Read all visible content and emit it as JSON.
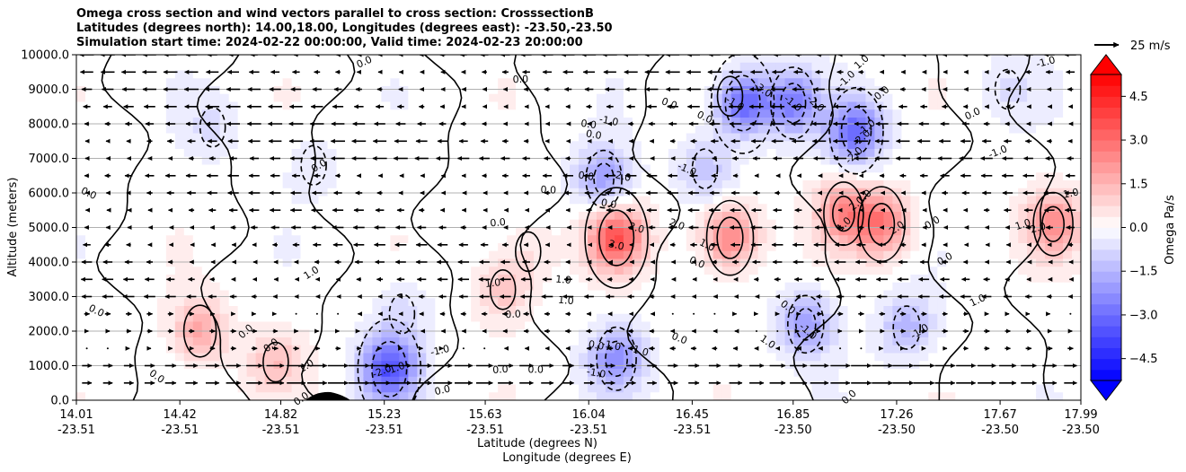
{
  "title_lines": [
    "Omega cross section and wind vectors parallel to cross section: CrosssectionB",
    "Latitudes (degrees north): 14.00,18.00, Longitudes (degrees east): -23.50,-23.50",
    "Simulation start time: 2024-02-22 00:00:00, Valid time: 2024-02-23 20:00:00"
  ],
  "chart_data": {
    "type": "heatmap",
    "overlays": [
      "contour",
      "quiver"
    ],
    "ylabel": "Altitude (meters)",
    "xlabel_lines": [
      "Latitude (degrees N)",
      "Longitude (degrees E)"
    ],
    "ylim": [
      0,
      10000
    ],
    "yticks": [
      "0.0",
      "1000.0",
      "2000.0",
      "3000.0",
      "4000.0",
      "5000.0",
      "6000.0",
      "7000.0",
      "8000.0",
      "9000.0",
      "10000.0"
    ],
    "xlim": [
      14.01,
      17.99
    ],
    "xticks": [
      {
        "lat": "14.01",
        "lon": "-23.51"
      },
      {
        "lat": "14.42",
        "lon": "-23.51"
      },
      {
        "lat": "14.82",
        "lon": "-23.51"
      },
      {
        "lat": "15.23",
        "lon": "-23.51"
      },
      {
        "lat": "15.63",
        "lon": "-23.51"
      },
      {
        "lat": "16.04",
        "lon": "-23.51"
      },
      {
        "lat": "16.45",
        "lon": "-23.51"
      },
      {
        "lat": "16.85",
        "lon": "-23.50"
      },
      {
        "lat": "17.26",
        "lon": "-23.50"
      },
      {
        "lat": "17.67",
        "lon": "-23.50"
      },
      {
        "lat": "17.99",
        "lon": "-23.50"
      }
    ],
    "grid": "horizontal",
    "colorbar": {
      "label": "Omega Pa/s",
      "range": [
        -5.25,
        5.25
      ],
      "ticks": [
        "4.5",
        "3.0",
        "1.5",
        "0.0",
        "−1.5",
        "−3.0",
        "−4.5"
      ],
      "tick_values": [
        4.5,
        3.0,
        1.5,
        0.0,
        -1.5,
        -3.0,
        -4.5
      ],
      "extend": "both",
      "colormap": "bwr"
    },
    "quiver_key": "25 m/s",
    "omega_cells": [
      {
        "lat": 16.15,
        "alt": 4700,
        "omega": 3.5
      },
      {
        "lat": 16.6,
        "alt": 4700,
        "omega": 2.6
      },
      {
        "lat": 17.2,
        "alt": 5100,
        "omega": 2.6
      },
      {
        "lat": 17.05,
        "alt": 5400,
        "omega": 2.2
      },
      {
        "lat": 17.88,
        "alt": 5100,
        "omega": 2.2
      },
      {
        "lat": 14.5,
        "alt": 2000,
        "omega": 1.8
      },
      {
        "lat": 14.8,
        "alt": 1100,
        "omega": 1.2
      },
      {
        "lat": 15.7,
        "alt": 3200,
        "omega": 1.3
      },
      {
        "lat": 15.8,
        "alt": 4300,
        "omega": 0.6
      },
      {
        "lat": 16.6,
        "alt": 8800,
        "omega": 0.4
      },
      {
        "lat": 16.65,
        "alt": 8600,
        "omega": -3.5
      },
      {
        "lat": 16.85,
        "alt": 8600,
        "omega": -2.5
      },
      {
        "lat": 17.1,
        "alt": 7800,
        "omega": -3.0
      },
      {
        "lat": 16.1,
        "alt": 6400,
        "omega": -2.0
      },
      {
        "lat": 16.5,
        "alt": 6700,
        "omega": -1.2
      },
      {
        "lat": 16.9,
        "alt": 2200,
        "omega": -2.0
      },
      {
        "lat": 17.3,
        "alt": 2100,
        "omega": -1.5
      },
      {
        "lat": 15.25,
        "alt": 900,
        "omega": -3.5
      },
      {
        "lat": 16.15,
        "alt": 1200,
        "omega": -2.2
      },
      {
        "lat": 14.55,
        "alt": 7900,
        "omega": -0.6
      },
      {
        "lat": 14.95,
        "alt": 6800,
        "omega": -0.5
      },
      {
        "lat": 17.7,
        "alt": 9000,
        "omega": -0.6
      },
      {
        "lat": 15.3,
        "alt": 2500,
        "omega": -0.8
      }
    ],
    "contour_labels": [
      {
        "text": "0.0",
        "lat": 14.06,
        "alt": 6000
      },
      {
        "text": "0.0",
        "lat": 14.09,
        "alt": 2600
      },
      {
        "text": "0.0",
        "lat": 14.33,
        "alt": 700
      },
      {
        "text": "0.0",
        "lat": 14.68,
        "alt": 2000
      },
      {
        "text": "0.0",
        "lat": 14.78,
        "alt": 1600
      },
      {
        "text": "0.0",
        "lat": 14.9,
        "alt": 50
      },
      {
        "text": "1.0",
        "lat": 14.92,
        "alt": 1000
      },
      {
        "text": "1.0",
        "lat": 14.94,
        "alt": 3700
      },
      {
        "text": "0.0",
        "lat": 14.97,
        "alt": 6800
      },
      {
        "text": "0.0",
        "lat": 15.15,
        "alt": 9800
      },
      {
        "text": "1.0",
        "lat": 15.28,
        "alt": 950
      },
      {
        "text": "-2.0",
        "lat": 15.22,
        "alt": 850
      },
      {
        "text": "-1.0",
        "lat": 15.45,
        "alt": 1450
      },
      {
        "text": "0.0",
        "lat": 15.46,
        "alt": 300
      },
      {
        "text": "1.0",
        "lat": 15.66,
        "alt": 3400
      },
      {
        "text": "0.0",
        "lat": 15.68,
        "alt": 5150
      },
      {
        "text": "0.0",
        "lat": 15.74,
        "alt": 2500
      },
      {
        "text": "0.0",
        "lat": 15.69,
        "alt": 900
      },
      {
        "text": "0.0",
        "lat": 15.77,
        "alt": 9300
      },
      {
        "text": "0.0",
        "lat": 15.88,
        "alt": 6100
      },
      {
        "text": "1.0",
        "lat": 15.94,
        "alt": 3500
      },
      {
        "text": "1.0",
        "lat": 15.95,
        "alt": 2900
      },
      {
        "text": "0.0",
        "lat": 15.83,
        "alt": 900
      },
      {
        "text": "0.0",
        "lat": 16.04,
        "alt": 8000
      },
      {
        "text": "0.0",
        "lat": 16.06,
        "alt": 7700
      },
      {
        "text": "0.0",
        "lat": 16.07,
        "alt": 1600
      },
      {
        "text": "0.0",
        "lat": 16.03,
        "alt": 6500
      },
      {
        "text": "0.0",
        "lat": 16.12,
        "alt": 5700
      },
      {
        "text": "-1.0",
        "lat": 16.07,
        "alt": 800
      },
      {
        "text": "-1.0",
        "lat": 16.12,
        "alt": 8100
      },
      {
        "text": "-2.0",
        "lat": 16.17,
        "alt": 6500
      },
      {
        "text": "-1.0",
        "lat": 16.13,
        "alt": 1600
      },
      {
        "text": "3.0",
        "lat": 16.15,
        "alt": 4500
      },
      {
        "text": "2.0",
        "lat": 16.23,
        "alt": 5000
      },
      {
        "text": "-1.0",
        "lat": 16.24,
        "alt": 1450
      },
      {
        "text": "2.0",
        "lat": 16.39,
        "alt": 5100
      },
      {
        "text": "0.0",
        "lat": 16.36,
        "alt": 8600
      },
      {
        "text": "1.0",
        "lat": 16.51,
        "alt": 4500
      },
      {
        "text": "0.0",
        "lat": 16.47,
        "alt": 4000
      },
      {
        "text": "0.0",
        "lat": 16.4,
        "alt": 1800
      },
      {
        "text": "0.0",
        "lat": 16.5,
        "alt": 8200
      },
      {
        "text": "-1.0",
        "lat": 16.43,
        "alt": 6700
      },
      {
        "text": "-1.0",
        "lat": 16.62,
        "alt": 8600
      },
      {
        "text": "-3.0",
        "lat": 16.73,
        "alt": 9000
      },
      {
        "text": "1.0",
        "lat": 16.75,
        "alt": 1700
      },
      {
        "text": "-1.0",
        "lat": 16.85,
        "alt": 8600
      },
      {
        "text": "-2.0",
        "lat": 16.94,
        "alt": 8600
      },
      {
        "text": "0.0",
        "lat": 16.83,
        "alt": 2700
      },
      {
        "text": "-1.0",
        "lat": 16.91,
        "alt": 2000
      },
      {
        "text": "0.0",
        "lat": 17.07,
        "alt": 100
      },
      {
        "text": "-1.0",
        "lat": 17.06,
        "alt": 9300
      },
      {
        "text": "-2.0",
        "lat": 17.09,
        "alt": 7100
      },
      {
        "text": "-2.0",
        "lat": 17.12,
        "alt": 7600
      },
      {
        "text": "-1.0",
        "lat": 17.14,
        "alt": 7900
      },
      {
        "text": "2.0",
        "lat": 17.1,
        "alt": 5700
      },
      {
        "text": "1.0",
        "lat": 17.05,
        "alt": 5100
      },
      {
        "text": "1.0",
        "lat": 17.12,
        "alt": 9800
      },
      {
        "text": "0.0",
        "lat": 17.2,
        "alt": 8900
      },
      {
        "text": "2.0",
        "lat": 17.26,
        "alt": 5000
      },
      {
        "text": "1.0",
        "lat": 17.13,
        "alt": 5900
      },
      {
        "text": "0.0",
        "lat": 17.4,
        "alt": 5150
      },
      {
        "text": "0.0",
        "lat": 17.45,
        "alt": 4100
      },
      {
        "text": "-1.0",
        "lat": 17.35,
        "alt": 2000
      },
      {
        "text": "0.0",
        "lat": 17.56,
        "alt": 8300
      },
      {
        "text": "1.0",
        "lat": 17.58,
        "alt": 2900
      },
      {
        "text": "-1.0",
        "lat": 17.66,
        "alt": 7200
      },
      {
        "text": "1.0",
        "lat": 17.76,
        "alt": 5100
      },
      {
        "text": "2.0",
        "lat": 17.82,
        "alt": 5000
      },
      {
        "text": "-1.0",
        "lat": 17.85,
        "alt": 9800
      },
      {
        "text": "1.0",
        "lat": 17.95,
        "alt": 6000
      }
    ]
  }
}
